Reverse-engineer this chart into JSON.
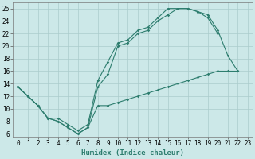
{
  "line1_x": [
    0,
    1,
    2,
    3,
    4,
    5,
    6,
    7,
    8,
    9,
    10,
    11,
    12,
    13,
    14,
    15,
    16,
    17,
    18,
    19,
    20,
    21,
    22
  ],
  "line1_y": [
    13.5,
    12.0,
    10.5,
    8.5,
    8.5,
    7.5,
    6.5,
    7.5,
    14.5,
    17.5,
    20.5,
    21.0,
    22.5,
    23.0,
    24.5,
    26.0,
    26.0,
    26.0,
    25.5,
    25.0,
    22.5,
    18.5,
    16.0
  ],
  "line2_x": [
    0,
    1,
    2,
    3,
    4,
    5,
    6,
    7,
    8,
    9,
    10,
    11,
    12,
    13,
    14,
    15,
    16,
    17,
    18,
    19,
    20
  ],
  "line2_y": [
    13.5,
    12.0,
    10.5,
    8.5,
    8.0,
    7.0,
    6.0,
    7.0,
    13.5,
    15.5,
    20.0,
    20.5,
    22.0,
    22.5,
    24.0,
    25.0,
    26.0,
    26.0,
    25.5,
    24.5,
    22.0
  ],
  "line3_x": [
    0,
    1,
    2,
    3,
    4,
    5,
    6,
    7,
    8,
    9,
    10,
    11,
    12,
    13,
    14,
    15,
    16,
    17,
    18,
    19,
    20,
    21,
    22
  ],
  "line3_y": [
    13.5,
    12.0,
    10.5,
    8.5,
    8.0,
    7.0,
    6.0,
    7.0,
    10.5,
    10.5,
    11.0,
    11.5,
    12.0,
    12.5,
    13.0,
    13.5,
    14.0,
    14.5,
    15.0,
    15.5,
    16.0,
    16.0,
    16.0
  ],
  "line_color": "#2d7d6e",
  "bg_color": "#cce8e8",
  "grid_color": "#aacccc",
  "xlabel": "Humidex (Indice chaleur)",
  "xlim": [
    -0.5,
    23.5
  ],
  "ylim": [
    5.5,
    27
  ],
  "xticks": [
    0,
    1,
    2,
    3,
    4,
    5,
    6,
    7,
    8,
    9,
    10,
    11,
    12,
    13,
    14,
    15,
    16,
    17,
    18,
    19,
    20,
    21,
    22,
    23
  ],
  "yticks": [
    6,
    8,
    10,
    12,
    14,
    16,
    18,
    20,
    22,
    24,
    26
  ],
  "xlabel_fontsize": 6.5,
  "tick_fontsize": 5.5
}
